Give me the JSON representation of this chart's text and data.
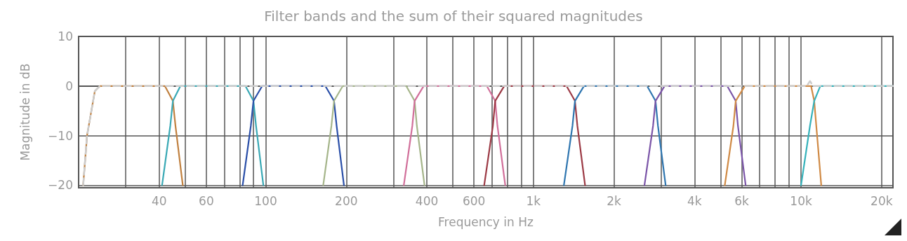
{
  "chart_data": {
    "type": "line",
    "title": "Filter bands and the sum of their squared magnitudes",
    "xlabel": "Frequency in Hz",
    "ylabel": "Magnitude in dB",
    "log": "x",
    "grid": true,
    "marker": "none",
    "xlim": [
      20,
      22050
    ],
    "ylim": [
      -20.5,
      10
    ],
    "yticks": [
      -20,
      -10,
      0,
      10
    ],
    "xticks": [
      {
        "value": 30,
        "label": null
      },
      40,
      {
        "value": 50,
        "label": null
      },
      60,
      {
        "value": 70,
        "label": null
      },
      {
        "value": 80,
        "label": null
      },
      {
        "value": 90,
        "label": null
      },
      100,
      200,
      {
        "value": 300,
        "label": null
      },
      400,
      {
        "value": 500,
        "label": null
      },
      600,
      {
        "value": 700,
        "label": null
      },
      {
        "value": 800,
        "label": null
      },
      {
        "value": 900,
        "label": null
      },
      {
        "value": 1000,
        "label": "1k"
      },
      {
        "value": 2000,
        "label": "2k"
      },
      {
        "value": 3000,
        "label": null
      },
      {
        "value": 4000,
        "label": "4k"
      },
      {
        "value": 5000,
        "label": null
      },
      {
        "value": 6000,
        "label": "6k"
      },
      {
        "value": 7000,
        "label": null
      },
      {
        "value": 8000,
        "label": null
      },
      {
        "value": 9000,
        "label": null
      },
      {
        "value": 10000,
        "label": "10k"
      },
      {
        "value": 20000,
        "label": "20k"
      }
    ],
    "series": [
      {
        "color": "#c0803f",
        "x": [
          20.8,
          21.5,
          23,
          24,
          42,
          45,
          46,
          49
        ],
        "values": [
          -20,
          -10,
          -1,
          0,
          0,
          -3,
          -8,
          -20
        ]
      },
      {
        "color": "#3aa9b5",
        "x": [
          41,
          44,
          45,
          48,
          84,
          90,
          92,
          98
        ],
        "values": [
          -20,
          -8,
          -3,
          0,
          0,
          -3,
          -8,
          -20
        ]
      },
      {
        "color": "#2a4fa8",
        "x": [
          82,
          88,
          90,
          97,
          167,
          180,
          184,
          196
        ],
        "values": [
          -20,
          -8,
          -3,
          0,
          0,
          -3,
          -8,
          -20
        ]
      },
      {
        "color": "#a5b58a",
        "x": [
          164,
          176,
          180,
          194,
          335,
          360,
          367,
          392
        ],
        "values": [
          -20,
          -8,
          -3,
          0,
          0,
          -3,
          -8,
          -20
        ]
      },
      {
        "color": "#d16f9a",
        "x": [
          328,
          353,
          360,
          389,
          670,
          720,
          734,
          785
        ],
        "values": [
          -20,
          -8,
          -3,
          0,
          0,
          -3,
          -8,
          -20
        ]
      },
      {
        "color": "#9c3a45",
        "x": [
          655,
          706,
          720,
          778,
          1330,
          1430,
          1460,
          1560
        ],
        "values": [
          -20,
          -8,
          -3,
          0,
          0,
          -3,
          -8,
          -20
        ]
      },
      {
        "color": "#2f76b0",
        "x": [
          1300,
          1400,
          1430,
          1545,
          2660,
          2860,
          2920,
          3120
        ],
        "values": [
          -20,
          -8,
          -3,
          0,
          0,
          -3,
          -8,
          -20
        ]
      },
      {
        "color": "#7b55a8",
        "x": [
          2600,
          2800,
          2860,
          3090,
          5300,
          5700,
          5810,
          6210
        ],
        "values": [
          -20,
          -8,
          -3,
          0,
          0,
          -3,
          -8,
          -20
        ]
      },
      {
        "color": "#d08a45",
        "x": [
          5190,
          5590,
          5700,
          6160,
          10900,
          11200,
          11400,
          11900
        ],
        "values": [
          -20,
          -8,
          -3,
          0,
          0,
          -3,
          -8,
          -20
        ]
      },
      {
        "color": "#35b2bb",
        "x": [
          10000,
          10800,
          11200,
          11800,
          22050
        ],
        "values": [
          -20,
          -8,
          -3,
          0,
          0
        ]
      },
      {
        "color": "#cccccc",
        "line_style": "dashed",
        "x": [
          20.8,
          21.5,
          23,
          24,
          10500,
          10800,
          11100,
          11500,
          22050
        ],
        "values": [
          -20,
          -10,
          -1,
          0,
          0,
          1,
          0,
          0,
          0
        ]
      }
    ]
  }
}
